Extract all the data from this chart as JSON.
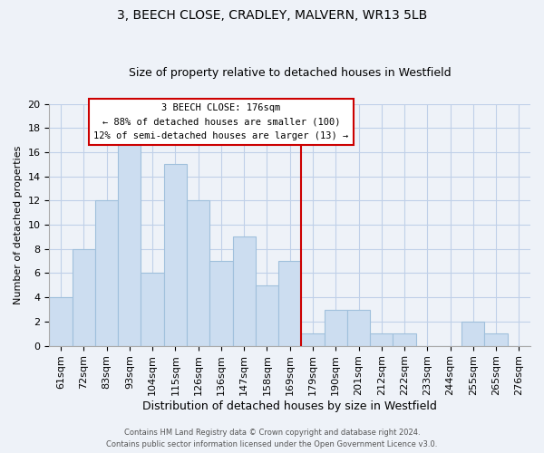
{
  "title1": "3, BEECH CLOSE, CRADLEY, MALVERN, WR13 5LB",
  "title2": "Size of property relative to detached houses in Westfield",
  "xlabel": "Distribution of detached houses by size in Westfield",
  "ylabel": "Number of detached properties",
  "bin_labels": [
    "61sqm",
    "72sqm",
    "83sqm",
    "93sqm",
    "104sqm",
    "115sqm",
    "126sqm",
    "136sqm",
    "147sqm",
    "158sqm",
    "169sqm",
    "179sqm",
    "190sqm",
    "201sqm",
    "212sqm",
    "222sqm",
    "233sqm",
    "244sqm",
    "255sqm",
    "265sqm",
    "276sqm"
  ],
  "bar_heights": [
    4,
    8,
    12,
    17,
    6,
    15,
    12,
    7,
    9,
    5,
    7,
    1,
    3,
    3,
    1,
    1,
    0,
    0,
    2,
    1,
    0
  ],
  "bar_color": "#ccddf0",
  "bar_edge_color": "#a0c0dc",
  "vline_x_index": 11,
  "vline_label": "3 BEECH CLOSE: 176sqm",
  "annotation_line1": "← 88% of detached houses are smaller (100)",
  "annotation_line2": "12% of semi-detached houses are larger (13) →",
  "annotation_box_color": "#ffffff",
  "annotation_border_color": "#cc0000",
  "vline_color": "#cc0000",
  "ylim": [
    0,
    20
  ],
  "yticks": [
    0,
    2,
    4,
    6,
    8,
    10,
    12,
    14,
    16,
    18,
    20
  ],
  "footer1": "Contains HM Land Registry data © Crown copyright and database right 2024.",
  "footer2": "Contains public sector information licensed under the Open Government Licence v3.0.",
  "grid_color": "#c0d0e8",
  "background_color": "#eef2f8",
  "title1_fontsize": 10,
  "title2_fontsize": 9,
  "xlabel_fontsize": 9,
  "ylabel_fontsize": 8,
  "tick_fontsize": 8,
  "footer_fontsize": 6
}
